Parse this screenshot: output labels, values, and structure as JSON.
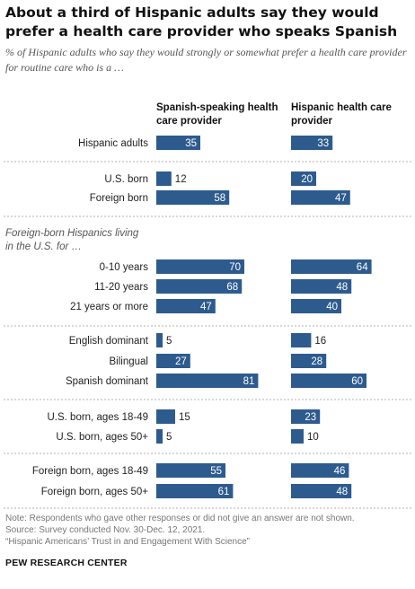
{
  "title": "About a third of Hispanic adults say they would prefer a health care provider who speaks Spanish",
  "subtitle": "% of Hispanic adults who say they would strongly or somewhat prefer a health care provider for routine care who is a …",
  "chart_data": {
    "type": "bar",
    "orientation": "horizontal",
    "series": [
      {
        "name": "Spanish-speaking health care provider",
        "values": [
          35,
          12,
          58,
          70,
          68,
          47,
          5,
          27,
          81,
          15,
          5,
          55,
          61
        ]
      },
      {
        "name": "Hispanic health care provider",
        "values": [
          33,
          20,
          47,
          64,
          48,
          40,
          16,
          28,
          60,
          23,
          10,
          46,
          48
        ]
      }
    ],
    "categories": [
      "Hispanic adults",
      "U.S. born",
      "Foreign born",
      "0-10 years",
      "11-20 years",
      "21 years or more",
      "English dominant",
      "Bilingual",
      "Spanish dominant",
      "U.S. born, ages 18-49",
      "U.S. born, ages 50+",
      "Foreign born, ages 18-49",
      "Foreign born, ages 50+"
    ],
    "group_label": "Foreign-born Hispanics living in the U.S. for …",
    "colors": {
      "bar": "#2d5b8e",
      "label_inside": "#ffffff",
      "label_outside": "#222222",
      "divider": "#b0b0b0"
    }
  },
  "footer": {
    "note": "Note: Respondents who gave other responses or did not give an answer are not shown.",
    "source": "Source: Survey conducted Nov. 30-Dec. 12, 2021.",
    "report": "“Hispanic Americans’ Trust in and Engagement With Science”",
    "org": "PEW RESEARCH CENTER"
  }
}
